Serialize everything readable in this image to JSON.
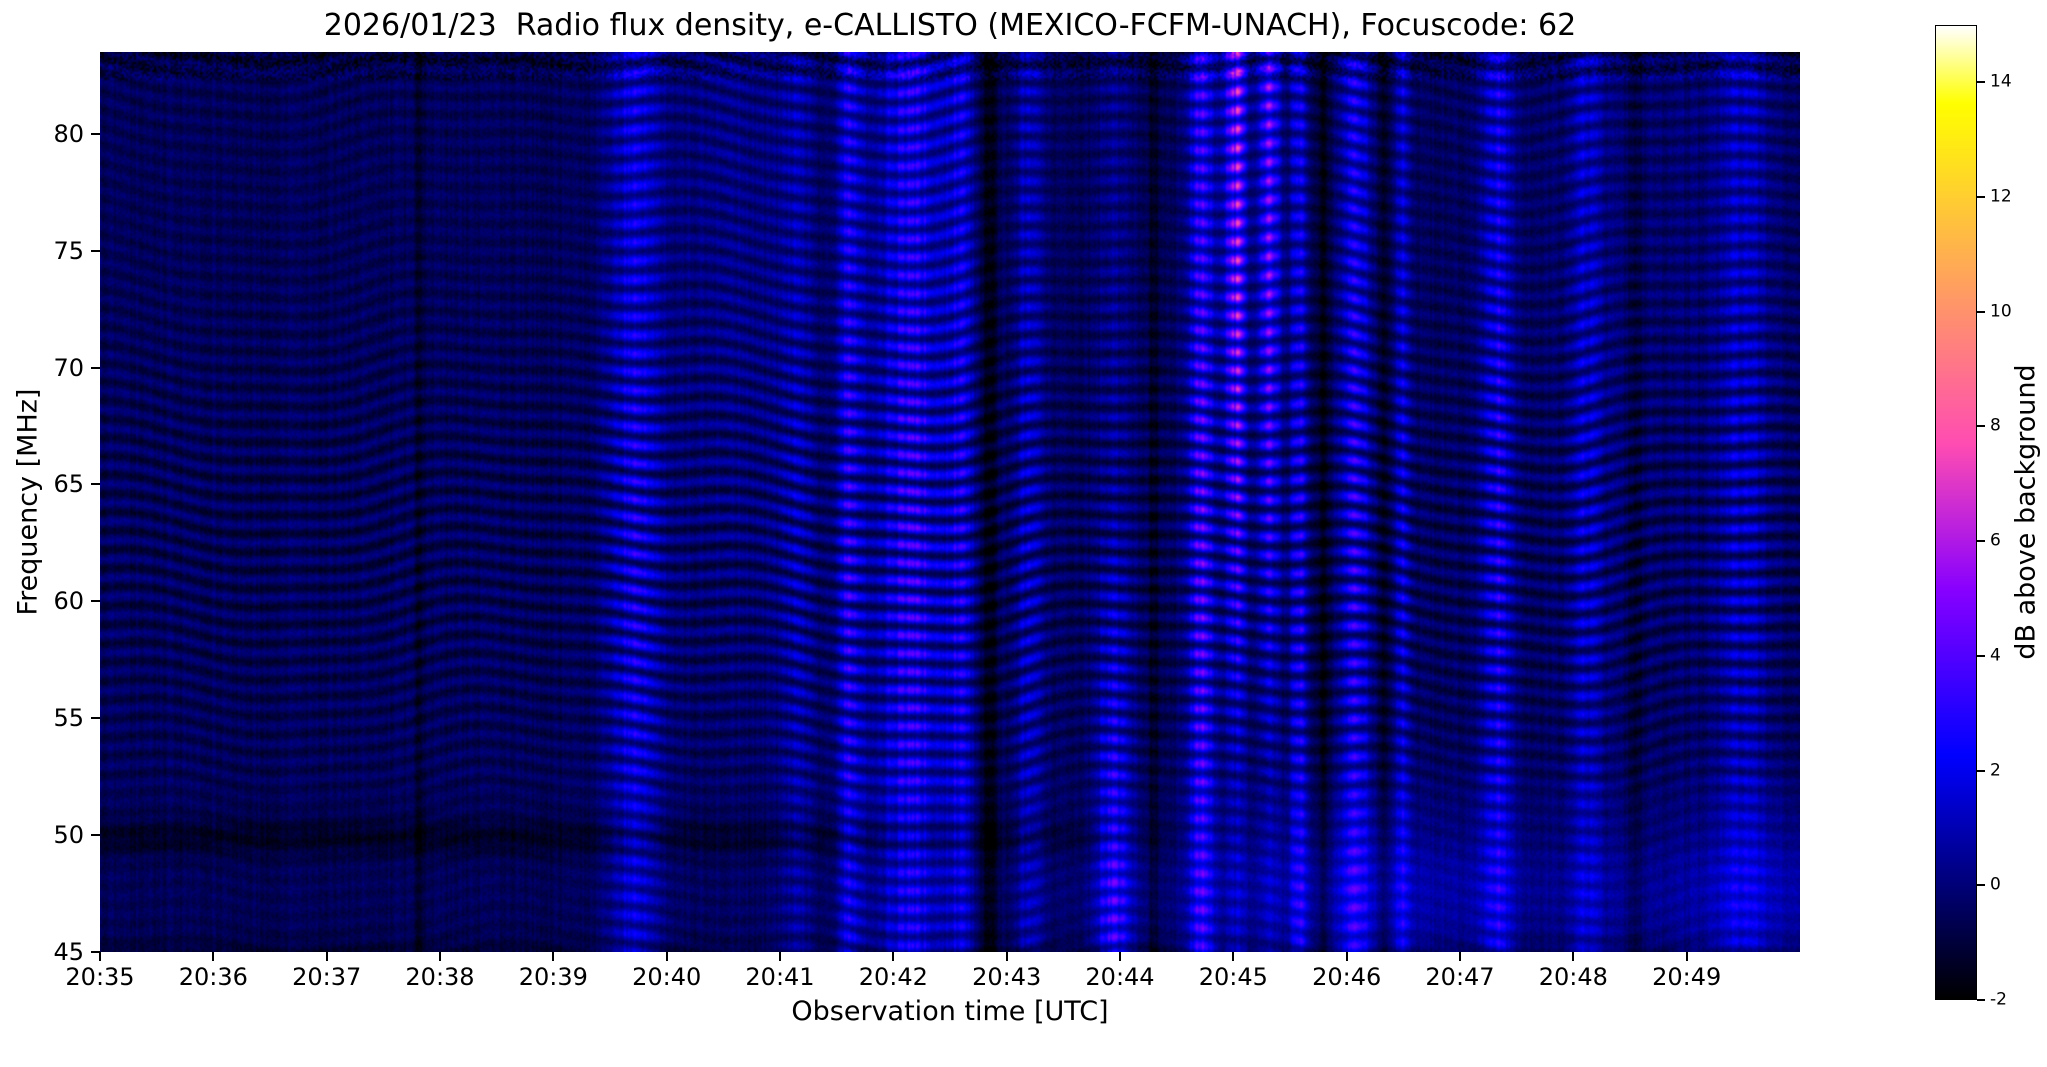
{
  "chart_data": {
    "type": "heatmap",
    "subtype": "radio-spectrogram",
    "title": "2026/01/23  Radio flux density, e-CALLISTO (MEXICO-FCFM-UNACH), Focuscode: 62",
    "xlabel": "Observation time [UTC]",
    "ylabel": "Frequency [MHz]",
    "x_start_utc": "20:35",
    "x_end_utc": "20:50",
    "duration_min": 15,
    "x_ticks": [
      {
        "min": 0,
        "label": "20:35"
      },
      {
        "min": 1,
        "label": "20:36"
      },
      {
        "min": 2,
        "label": "20:37"
      },
      {
        "min": 3,
        "label": "20:38"
      },
      {
        "min": 4,
        "label": "20:39"
      },
      {
        "min": 5,
        "label": "20:40"
      },
      {
        "min": 6,
        "label": "20:41"
      },
      {
        "min": 7,
        "label": "20:42"
      },
      {
        "min": 8,
        "label": "20:43"
      },
      {
        "min": 9,
        "label": "20:44"
      },
      {
        "min": 10,
        "label": "20:45"
      },
      {
        "min": 11,
        "label": "20:46"
      },
      {
        "min": 12,
        "label": "20:47"
      },
      {
        "min": 13,
        "label": "20:48"
      },
      {
        "min": 14,
        "label": "20:49"
      }
    ],
    "ylim": [
      45,
      83.5
    ],
    "y_ticks": [
      45,
      50,
      55,
      60,
      65,
      70,
      75,
      80
    ],
    "colorbar": {
      "label": "dB above background",
      "vmin": -2,
      "vmax": 15,
      "ticks": [
        -2,
        0,
        2,
        4,
        6,
        8,
        10,
        12,
        14
      ],
      "colormap": "gnuplot2"
    },
    "background": {
      "base_db": -0.55,
      "fringe_wavelength_mhz": 0.78,
      "fringe_amp_db": 0.5,
      "pixel_noise_db": 0.55,
      "column_noise_db": 0.5
    },
    "interference_bands": [
      {
        "time_utc": "20:39.7",
        "t_min": 4.72,
        "width_min": 0.34,
        "amp_db": 2.6,
        "freq_profile": "full"
      },
      {
        "time_utc": "20:40.5",
        "t_min": 5.55,
        "width_min": 0.7,
        "amp_db": 1.0,
        "freq_profile": "high"
      },
      {
        "time_utc": "20:41.1",
        "t_min": 6.15,
        "width_min": 0.22,
        "amp_db": 1.6,
        "freq_profile": "full"
      },
      {
        "time_utc": "20:41.6",
        "t_min": 6.62,
        "width_min": 0.16,
        "amp_db": 3.2,
        "freq_profile": "full"
      },
      {
        "time_utc": "20:42.1",
        "t_min": 7.15,
        "width_min": 0.42,
        "amp_db": 3.4,
        "freq_profile": "full"
      },
      {
        "time_utc": "20:42.6",
        "t_min": 7.6,
        "width_min": 0.16,
        "amp_db": 2.6,
        "freq_profile": "full"
      },
      {
        "time_utc": "20:43.2",
        "t_min": 8.2,
        "width_min": 0.18,
        "amp_db": 2.0,
        "freq_profile": "full"
      },
      {
        "time_utc": "20:43.9",
        "t_min": 8.95,
        "width_min": 0.22,
        "amp_db": 4.3,
        "freq_profile": "low"
      },
      {
        "time_utc": "20:44.7",
        "t_min": 9.72,
        "width_min": 0.16,
        "amp_db": 4.2,
        "freq_profile": "full"
      },
      {
        "time_utc": "20:45.0",
        "t_min": 10.02,
        "width_min": 0.14,
        "amp_db": 6.2,
        "freq_profile": "high"
      },
      {
        "time_utc": "20:45.3",
        "t_min": 10.32,
        "width_min": 0.13,
        "amp_db": 5.2,
        "freq_profile": "high"
      },
      {
        "time_utc": "20:45.6",
        "t_min": 10.58,
        "width_min": 0.11,
        "amp_db": 3.0,
        "freq_profile": "full"
      },
      {
        "time_utc": "20:46.1",
        "t_min": 11.08,
        "width_min": 0.18,
        "amp_db": 3.4,
        "freq_profile": "full"
      },
      {
        "time_utc": "20:46.5",
        "t_min": 11.5,
        "width_min": 0.1,
        "amp_db": 2.2,
        "freq_profile": "full"
      },
      {
        "time_utc": "20:47.3",
        "t_min": 12.32,
        "width_min": 0.18,
        "amp_db": 3.0,
        "freq_profile": "full"
      },
      {
        "time_utc": "20:48.1",
        "t_min": 13.12,
        "width_min": 0.22,
        "amp_db": 1.7,
        "freq_profile": "full"
      },
      {
        "time_utc": "20:48.8",
        "t_min": 13.8,
        "width_min": 2.2,
        "amp_db": 0.5,
        "freq_profile": "high"
      },
      {
        "time_utc": "20:49.5",
        "t_min": 14.5,
        "width_min": 0.3,
        "amp_db": 1.6,
        "freq_profile": "full"
      }
    ],
    "dark_gaps": [
      {
        "time_utc": "20:37.8",
        "t_min": 2.82,
        "width_min": 0.06,
        "depth_db": -0.9
      },
      {
        "time_utc": "20:42.9",
        "t_min": 7.85,
        "width_min": 0.1,
        "depth_db": -1.2
      },
      {
        "time_utc": "20:44.3",
        "t_min": 9.3,
        "width_min": 0.07,
        "depth_db": -1.0
      },
      {
        "time_utc": "20:45.8",
        "t_min": 10.8,
        "width_min": 0.09,
        "depth_db": -1.1
      },
      {
        "time_utc": "20:46.3",
        "t_min": 11.33,
        "width_min": 0.07,
        "depth_db": -1.0
      },
      {
        "time_utc": "20:48.6",
        "t_min": 13.55,
        "width_min": 0.09,
        "depth_db": -0.8
      }
    ],
    "low_freq_glow": {
      "center_mhz": 47.5,
      "sigma_mhz": 2.6,
      "amp_db": 1.1,
      "onset_min": 9.0
    },
    "early_dark_lane": {
      "center_mhz": 49.9,
      "sigma_mhz": 0.55,
      "depth_db": 0.85
    }
  }
}
